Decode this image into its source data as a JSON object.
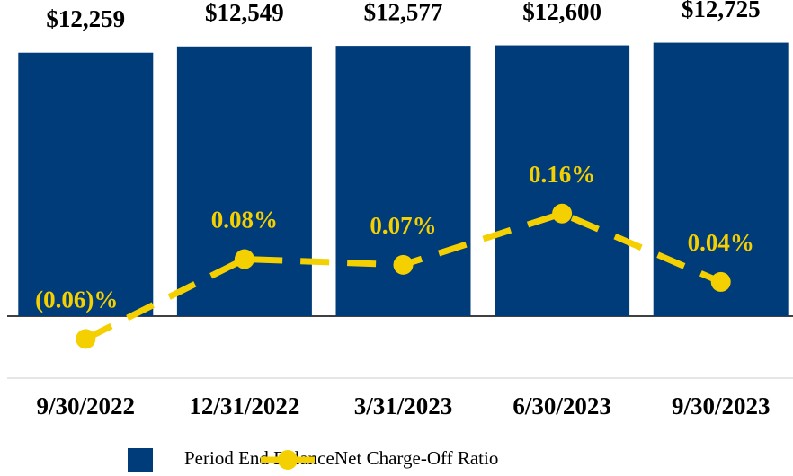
{
  "chart_data": {
    "type": "bar_line",
    "categories": [
      "9/30/2022",
      "12/31/2022",
      "3/31/2023",
      "6/30/2023",
      "9/30/2023"
    ],
    "series": [
      {
        "name": "Period End Balance",
        "type": "bar",
        "color": "#003b7a",
        "values": [
          12259,
          12549,
          12577,
          12600,
          12725
        ],
        "value_labels": [
          "$12,259",
          "$12,549",
          "$12,577",
          "$12,600",
          "$12,725"
        ]
      },
      {
        "name": "Net Charge-Off Ratio",
        "type": "line",
        "axis": "y2",
        "color": "#f5d000",
        "values": [
          -0.06,
          0.08,
          0.07,
          0.16,
          0.04
        ],
        "value_labels": [
          "(0.06)%",
          "0.08%",
          "0.07%",
          "0.16%",
          "0.04%"
        ]
      }
    ],
    "ylim": [
      0,
      13000
    ],
    "y2lim": [
      -0.02,
      0.47
    ]
  }
}
